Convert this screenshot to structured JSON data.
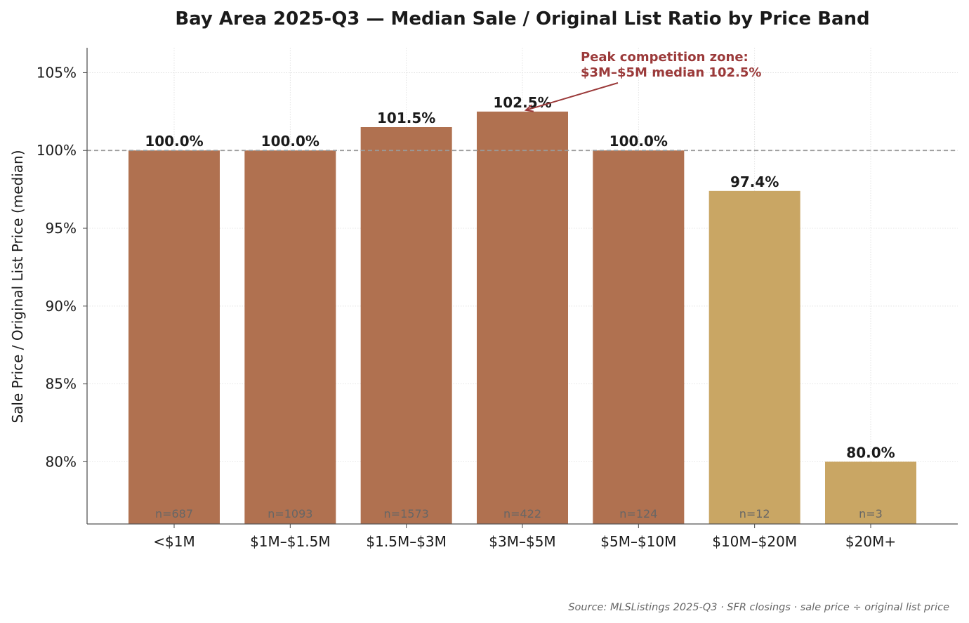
{
  "chart_data": {
    "type": "bar",
    "title": "Bay Area 2025-Q3 — Median Sale / Original List Ratio by Price Band",
    "xlabel": "",
    "ylabel": "Sale Price / Original List Price (median)",
    "categories": [
      "<$1M",
      "$1M–$1.5M",
      "$1.5M–$3M",
      "$3M–$5M",
      "$5M–$10M",
      "$10M–$20M",
      "$20M+"
    ],
    "values": [
      100.0,
      100.0,
      101.5,
      102.5,
      100.0,
      97.4,
      80.0
    ],
    "value_labels": [
      "100.0%",
      "100.0%",
      "101.5%",
      "102.5%",
      "100.0%",
      "97.4%",
      "80.0%"
    ],
    "sample_labels": [
      "n=687",
      "n=1093",
      "n=1573",
      "n=422",
      "n=124",
      "n=12",
      "n=3"
    ],
    "bar_colors": [
      "#b07150",
      "#b07150",
      "#b07150",
      "#b07150",
      "#b07150",
      "#c9a664",
      "#c9a664"
    ],
    "ylim": [
      76,
      106.6
    ],
    "yticks": [
      80,
      85,
      90,
      95,
      100,
      105
    ],
    "ytick_labels": [
      "80%",
      "85%",
      "90%",
      "95%",
      "100%",
      "105%"
    ],
    "reference_line": 100,
    "grid": true,
    "annotation": {
      "lines": [
        "Peak competition zone:",
        "$3M–$5M median 102.5%"
      ],
      "color": "#9b3a3a",
      "target_category": "$3M–$5M",
      "target_value": 102.5
    },
    "source": "Source: MLSListings 2025-Q3 · SFR closings · sale price ÷ original list price"
  }
}
